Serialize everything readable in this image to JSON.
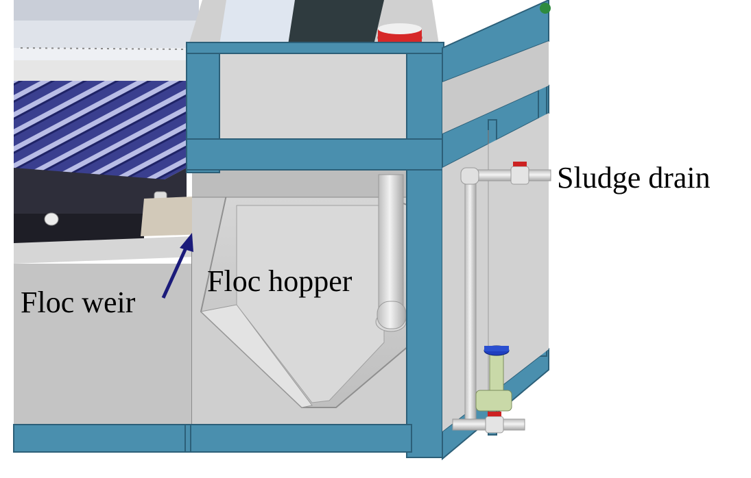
{
  "labels": {
    "sludge_drain": "Sludge drain",
    "floc_hopper": "Floc hopper",
    "floc_weir": "Floc weir"
  },
  "colors": {
    "frame_blue": "#4a8fae",
    "frame_blue_dark": "#35708c",
    "panel_gray": "#c8c8c8",
    "panel_gray_light": "#dcdcdc",
    "tube_navy": "#2b2f7a",
    "arrow_navy": "#1b1b7a",
    "valve_red": "#cc2222",
    "valve_blue": "#1f3fbf",
    "fitting_green": "#c9d9a8"
  }
}
